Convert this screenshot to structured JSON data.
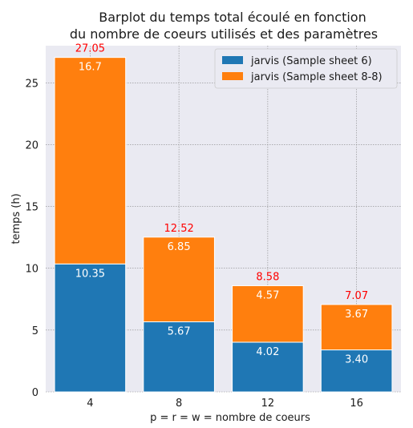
{
  "chart_data": {
    "type": "bar",
    "stacked": true,
    "title_line1": "Barplot du temps total écoulé en fonction",
    "title_line2": "du nombre de coeurs utilisés et des paramètres",
    "xlabel": "p = r = w = nombre de coeurs",
    "ylabel": "temps (h)",
    "categories": [
      "4",
      "8",
      "12",
      "16"
    ],
    "ylim": [
      0,
      28
    ],
    "yticks": [
      0,
      5,
      10,
      15,
      20,
      25
    ],
    "grid": true,
    "legend_position": "top-right",
    "series": [
      {
        "name": "jarvis (Sample sheet 6)",
        "color": "#1f77b4",
        "values": [
          10.35,
          5.67,
          4.02,
          3.4
        ],
        "labels": [
          "10.35",
          "5.67",
          "4.02",
          "3.40"
        ]
      },
      {
        "name": "jarvis (Sample sheet 8-8)",
        "color": "#ff7f0e",
        "values": [
          16.7,
          6.85,
          4.57,
          3.67
        ],
        "labels": [
          "16.7",
          "6.85",
          "4.57",
          "3.67"
        ]
      }
    ],
    "totals": [
      "27.05",
      "12.52",
      "8.58",
      "7.07"
    ],
    "total_color": "#ff0000",
    "background_color": "#eaeaf2",
    "grid_color": "#888888"
  }
}
